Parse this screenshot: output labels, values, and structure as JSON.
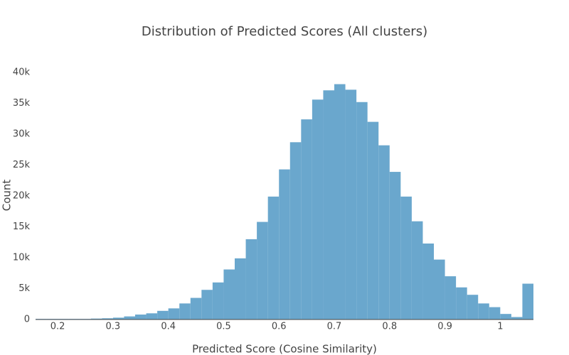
{
  "chart_data": {
    "type": "histogram",
    "title": "Distribution of Predicted Scores (All clusters)",
    "xlabel": "Predicted Score (Cosine Similarity)",
    "ylabel": "Count",
    "bins": [
      0.16,
      0.18,
      0.2,
      0.22,
      0.24,
      0.26,
      0.28,
      0.3,
      0.32,
      0.34,
      0.36,
      0.38,
      0.4,
      0.42,
      0.44,
      0.46,
      0.48,
      0.5,
      0.52,
      0.54,
      0.56,
      0.58,
      0.6,
      0.62,
      0.64,
      0.66,
      0.68,
      0.7,
      0.72,
      0.74,
      0.76,
      0.78,
      0.8,
      0.82,
      0.84,
      0.86,
      0.88,
      0.9,
      0.92,
      0.94,
      0.96,
      0.98,
      1,
      1.02,
      1.04,
      1.06
    ],
    "counts": [
      100,
      100,
      100,
      100,
      100,
      150,
      200,
      300,
      500,
      800,
      1000,
      1400,
      1800,
      2600,
      3500,
      4800,
      6000,
      8100,
      9900,
      13000,
      15800,
      19900,
      24300,
      28700,
      32400,
      35600,
      37100,
      38100,
      37200,
      35200,
      32000,
      28200,
      23900,
      19900,
      15900,
      12300,
      9700,
      7000,
      5200,
      4000,
      2600,
      2000,
      900,
      400,
      5800
    ],
    "color": "#6aa7cd",
    "xlim": [
      0.16,
      1.06
    ],
    "ylim": [
      0,
      42000
    ],
    "xticks": [
      0.2,
      0.3,
      0.4,
      0.5,
      0.6,
      0.7,
      0.8,
      0.9,
      1
    ],
    "yticks": [
      0,
      {
        "value": 5000,
        "label": "5k"
      },
      {
        "value": 10000,
        "label": "10k"
      },
      {
        "value": 15000,
        "label": "15k"
      },
      {
        "value": 20000,
        "label": "20k"
      },
      {
        "value": 25000,
        "label": "25k"
      },
      {
        "value": 30000,
        "label": "30k"
      },
      {
        "value": 35000,
        "label": "35k"
      },
      {
        "value": 40000,
        "label": "40k"
      }
    ],
    "grid": false
  }
}
